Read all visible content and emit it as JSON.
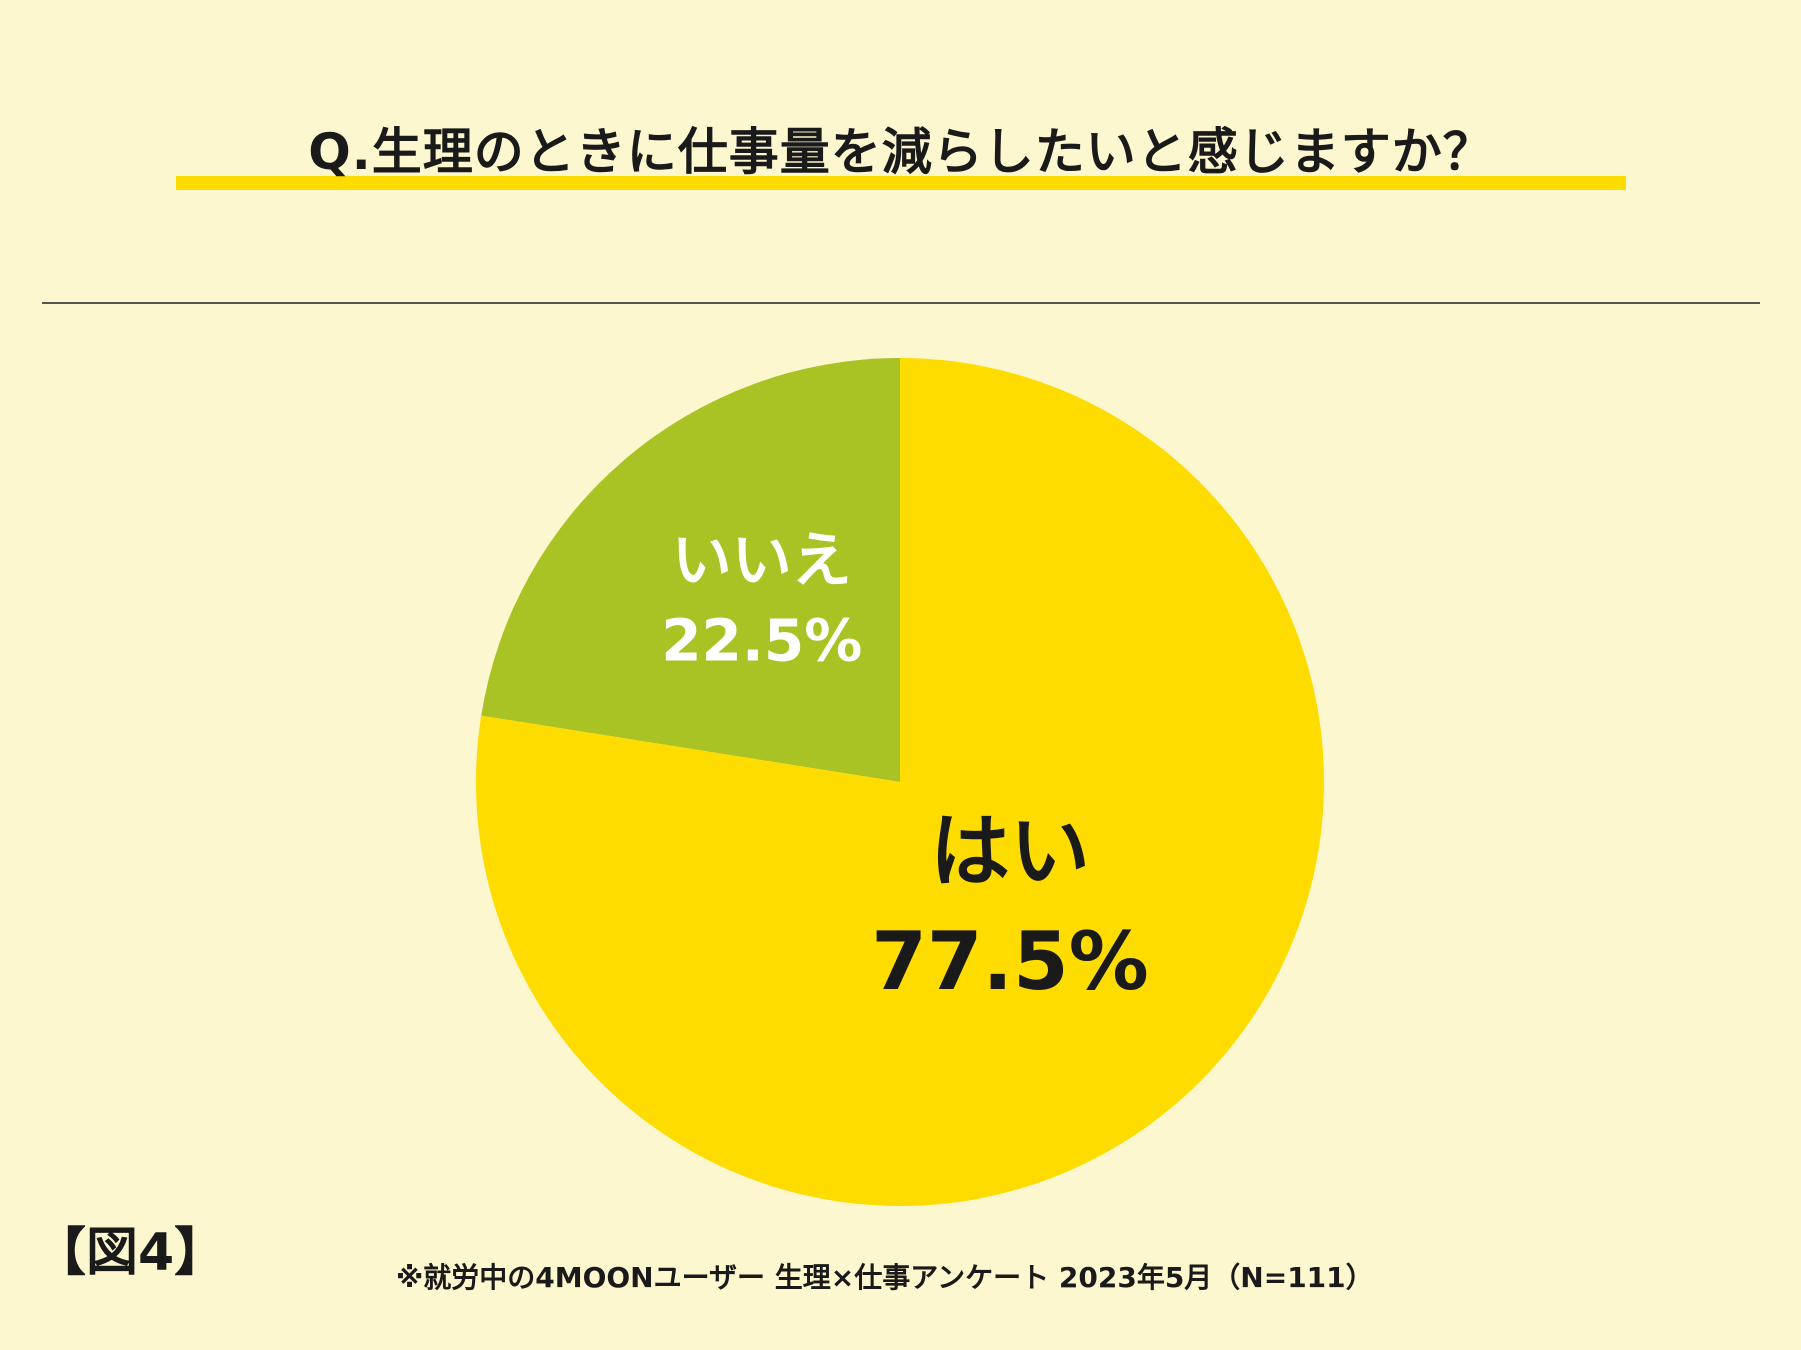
{
  "header": {
    "title": "Q.生理のときに仕事量を減らしたいと感じますか？"
  },
  "colors": {
    "background": "#fdf7cf",
    "yes": "#ffdc00",
    "no": "#a9c224",
    "yes_text": "#1a1a1a",
    "no_text": "#ffffff"
  },
  "chart_data": {
    "type": "pie",
    "title": "Q.生理のときに仕事量を減らしたいと感じますか？",
    "slices": [
      {
        "label": "いいえ",
        "value": 22.5,
        "value_label": "22.5%",
        "color": "#a9c224",
        "text_color": "#ffffff"
      },
      {
        "label": "はい",
        "value": 77.5,
        "value_label": "77.5%",
        "color": "#ffdc00",
        "text_color": "#1a1a1a"
      }
    ],
    "start": "12 o'clock",
    "direction": "counterclockwise"
  },
  "footer": {
    "figure_label": "【図4】",
    "note": "※就労中の4MOONユーザー 生理×仕事アンケート 2023年5月（N=111）"
  }
}
